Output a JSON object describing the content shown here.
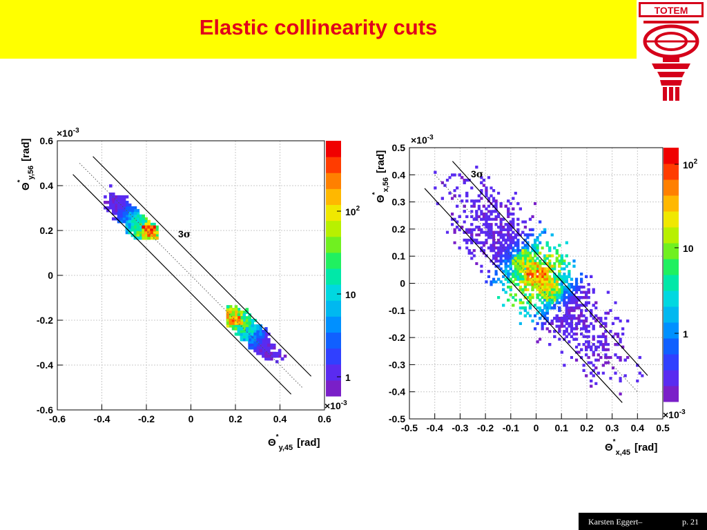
{
  "slide": {
    "title": "Elastic collinearity cuts"
  },
  "logo": {
    "text": "TOTEM",
    "icon": "totem-logo-icon"
  },
  "footer": {
    "author": "Karsten Eggert–",
    "page": "p. 21"
  },
  "colors": {
    "title": "#e0001b",
    "band": "#ffff00",
    "logo": "#d5001a"
  },
  "chart_data": [
    {
      "type": "heatmap",
      "title": "",
      "xlabel": "Θ*y,45 [rad]",
      "xlabel_main": "Θ",
      "xlabel_sub": "y,45",
      "xlabel_sup": "*",
      "xlabel_unit": "[rad]",
      "ylabel": "Θ*y,56 [rad]",
      "ylabel_main": "Θ",
      "ylabel_sub": "y,56",
      "ylabel_sup": "*",
      "ylabel_unit": "[rad]",
      "axis_scale": "×10-3",
      "axis_scale_base": "×10",
      "axis_scale_exp": "-3",
      "xlim": [
        -0.6,
        0.6
      ],
      "ylim": [
        -0.6,
        0.6
      ],
      "x_ticks": [
        "-0.6",
        "-0.4",
        "-0.2",
        "0",
        "0.2",
        "0.4",
        "0.6"
      ],
      "y_ticks": [
        "-0.6",
        "-0.4",
        "-0.2",
        "0",
        "0.2",
        "0.4",
        "0.6"
      ],
      "grid": true,
      "colorbar": {
        "scale": "log",
        "labels": [
          "1",
          "10",
          "10^2"
        ],
        "label_1": "1",
        "label_10": "10",
        "label_100_base": "10",
        "label_100_exp": "2"
      },
      "annotation": "3σ",
      "annotation_main": "3",
      "annotation_sigma": "σ",
      "cut_lines": [
        {
          "x": [
            -0.44,
            0.54
          ],
          "y": [
            0.53,
            -0.45
          ]
        },
        {
          "x": [
            -0.53,
            0.45
          ],
          "y": [
            0.45,
            -0.53
          ]
        }
      ],
      "center_line": {
        "x": [
          -0.5,
          0.5
        ],
        "y": [
          0.5,
          -0.5
        ]
      },
      "clusters": [
        {
          "center": [
            -0.24,
            0.21
          ],
          "peak": [
            -0.18,
            0.18
          ],
          "x_range": [
            -0.39,
            -0.155
          ],
          "y_range": [
            0.16,
            0.42
          ]
        },
        {
          "center": [
            0.24,
            -0.24
          ],
          "peak": [
            0.18,
            -0.19
          ],
          "x_range": [
            0.155,
            0.42
          ],
          "y_range": [
            -0.39,
            -0.15
          ]
        }
      ]
    },
    {
      "type": "heatmap",
      "title": "",
      "xlabel": "Θ*x,45 [rad]",
      "xlabel_main": "Θ",
      "xlabel_sub": "x,45",
      "xlabel_sup": "*",
      "xlabel_unit": "[rad]",
      "ylabel": "Θ*x,56 [rad]",
      "ylabel_main": "Θ",
      "ylabel_sub": "x,56",
      "ylabel_sup": "*",
      "ylabel_unit": "[rad]",
      "axis_scale": "×10-3",
      "axis_scale_base": "×10",
      "axis_scale_exp": "-3",
      "xlim": [
        -0.5,
        0.5
      ],
      "ylim": [
        -0.5,
        0.5
      ],
      "x_ticks": [
        "-0.5",
        "-0.4",
        "-0.3",
        "-0.2",
        "-0.1",
        "0",
        "0.1",
        "0.2",
        "0.3",
        "0.4",
        "0.5"
      ],
      "y_ticks": [
        "-0.5",
        "-0.4",
        "-0.3",
        "-0.2",
        "-0.1",
        "0",
        "0.1",
        "0.2",
        "0.3",
        "0.4",
        "0.5"
      ],
      "grid": true,
      "colorbar": {
        "scale": "log",
        "labels": [
          "1",
          "10",
          "10^2"
        ],
        "label_1": "1",
        "label_10": "10",
        "label_100_base": "10",
        "label_100_exp": "2"
      },
      "annotation": "3σ",
      "annotation_main": "3",
      "annotation_sigma": "σ",
      "cut_lines": [
        {
          "x": [
            -0.33,
            0.44
          ],
          "y": [
            0.45,
            -0.34
          ]
        },
        {
          "x": [
            -0.44,
            0.34
          ],
          "y": [
            0.35,
            -0.44
          ]
        }
      ],
      "center_line": {
        "x": [
          -0.4,
          0.4
        ],
        "y": [
          0.4,
          -0.4
        ]
      },
      "clusters": [
        {
          "center": [
            0.0,
            0.02
          ],
          "peak": [
            0.0,
            0.02
          ],
          "x_range": [
            -0.42,
            0.45
          ],
          "y_range": [
            -0.45,
            0.43
          ]
        }
      ]
    }
  ]
}
